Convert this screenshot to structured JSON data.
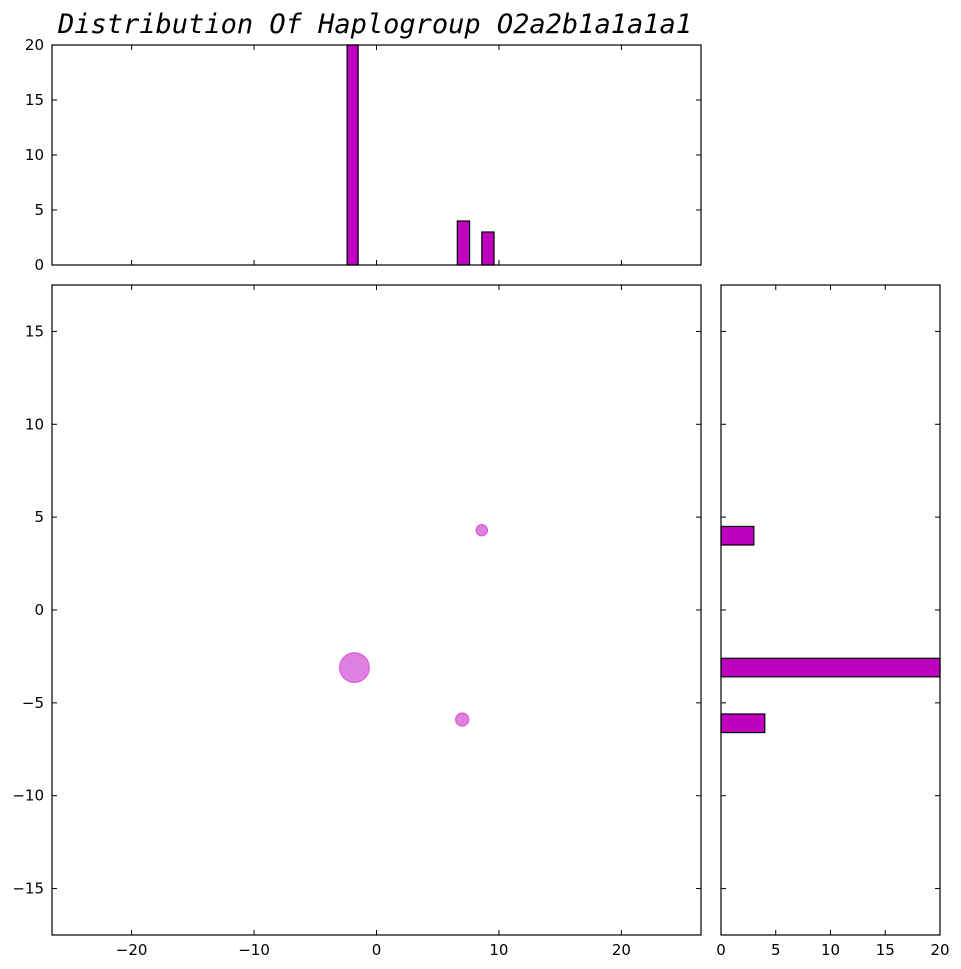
{
  "colors": {
    "bar_fill": "#bf00bf",
    "bar_edge": "#000000",
    "marker_fill": "#bf00bf",
    "marker_opacity": 0.5,
    "axes_edge": "#000000",
    "background": "#ffffff"
  },
  "chart_data": {
    "title": "Distribution Of Haplogroup O2a2b1a1a1a1",
    "scatter": {
      "type": "scatter",
      "xlim": [
        -26.5,
        26.5
      ],
      "ylim": [
        -17.5,
        17.5
      ],
      "xticks": [
        -20,
        -10,
        0,
        10,
        20
      ],
      "xtick_labels": [
        "−20",
        "−10",
        "0",
        "10",
        "20"
      ],
      "yticks": [
        -15,
        -10,
        -5,
        0,
        5,
        10,
        15
      ],
      "ytick_labels": [
        "−15",
        "−10",
        "−5",
        "0",
        "5",
        "10",
        "15"
      ],
      "points": [
        {
          "x": -1.8,
          "y": -3.1,
          "count": 20
        },
        {
          "x": 7.0,
          "y": -5.9,
          "count": 4
        },
        {
          "x": 8.6,
          "y": 4.3,
          "count": 3
        }
      ]
    },
    "histogram_x": {
      "type": "bar",
      "orientation": "vertical",
      "ylim": [
        0,
        20
      ],
      "yticks": [
        0,
        5,
        10,
        15,
        20
      ],
      "ytick_labels": [
        "0",
        "5",
        "10",
        "15",
        "20"
      ],
      "bars": [
        {
          "x0": -2.4,
          "x1": -1.5,
          "value": 20
        },
        {
          "x0": 6.6,
          "x1": 7.6,
          "value": 4
        },
        {
          "x0": 8.6,
          "x1": 9.6,
          "value": 3
        }
      ]
    },
    "histogram_y": {
      "type": "bar",
      "orientation": "horizontal",
      "xlim": [
        0,
        20
      ],
      "xticks": [
        0,
        5,
        10,
        15,
        20
      ],
      "xtick_labels": [
        "0",
        "5",
        "10",
        "15",
        "20"
      ],
      "bars": [
        {
          "y0": 3.5,
          "y1": 4.5,
          "value": 3
        },
        {
          "y0": -3.6,
          "y1": -2.6,
          "value": 20
        },
        {
          "y0": -6.6,
          "y1": -5.6,
          "value": 4
        }
      ]
    }
  }
}
